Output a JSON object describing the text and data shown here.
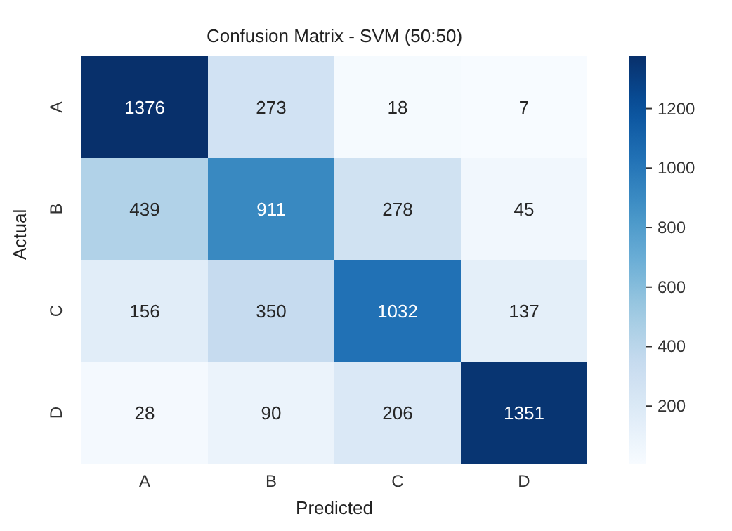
{
  "chart_data": {
    "type": "heatmap",
    "title": "Confusion Matrix - SVM (50:50)",
    "xlabel": "Predicted",
    "ylabel": "Actual",
    "categories": [
      "A",
      "B",
      "C",
      "D"
    ],
    "y_categories": [
      "A",
      "B",
      "C",
      "D"
    ],
    "cells": [
      [
        1376,
        273,
        18,
        7
      ],
      [
        439,
        911,
        278,
        45
      ],
      [
        156,
        350,
        1032,
        137
      ],
      [
        28,
        90,
        206,
        1351
      ]
    ],
    "data_labels": true,
    "clim": [
      7,
      1376
    ],
    "cticks": [
      200,
      400,
      600,
      800,
      1000,
      1200
    ]
  }
}
